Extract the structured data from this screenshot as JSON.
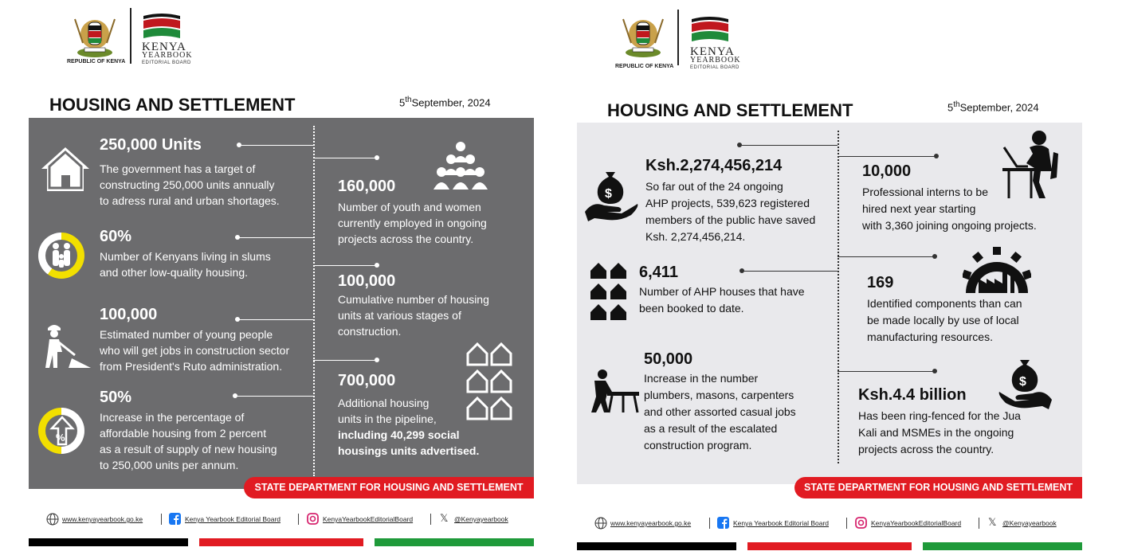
{
  "left": {
    "header": {
      "republic": "REPUBLIC OF KENYA",
      "brand_main": "KENYA",
      "brand_main2": "YEARBOOK",
      "brand_sub": "EDITORIAL BOARD",
      "title": "HOUSING AND SETTLEMENT",
      "date_day": "5",
      "date_suffix": "th",
      "date_rest": "September, 2024"
    },
    "stats_left": [
      {
        "value": "250,000 Units",
        "lines": [
          "The government has a target of",
          "constructing 250,000 units annually",
          "to adress rural and urban shortages."
        ],
        "icon": "house-icon"
      },
      {
        "value": "60%",
        "lines": [
          "Number of Kenyans living in slums",
          "and other low-quality housing."
        ],
        "icon": "family-ring-icon",
        "ring_percent": 60
      },
      {
        "value": "100,000",
        "lines": [
          "Estimated number of young people",
          "who will get jobs in construction sector",
          "from President's Ruto administration."
        ],
        "icon": "worker-shovel-icon"
      },
      {
        "value": "50%",
        "lines": [
          "Increase in the percentage of",
          "affordable housing from 2 percent",
          "as a result of supply of new housing",
          "to 250,000 units per annum."
        ],
        "icon": "percent-arrow-ring-icon",
        "ring_percent": 50
      }
    ],
    "stats_right": [
      {
        "value": "160,000",
        "lines": [
          "Number of youth and women",
          "currently employed in ongoing",
          "projects across the country."
        ],
        "icon": "people-group-icon"
      },
      {
        "value": "100,000",
        "lines": [
          "Cumulative number of housing",
          "units at various stages of",
          "construction."
        ]
      },
      {
        "value": "700,000",
        "lines": [
          "Additional housing",
          "units in the pipeline,",
          "including 40,299 social",
          "housings units advertised."
        ],
        "icon": "houses-grid-icon"
      }
    ],
    "banner": "STATE DEPARTMENT FOR HOUSING AND SETTLEMENT",
    "social": [
      "www.kenyayearbook.go.ke",
      "Kenya Yearbook Editorial Board",
      "KenyaYearbookEditorialBoard",
      "@Kenyayearbook"
    ]
  },
  "right": {
    "header": {
      "republic": "REPUBLIC OF KENYA",
      "brand_main": "KENYA",
      "brand_main2": "YEARBOOK",
      "brand_sub": "EDITORIAL BOARD",
      "title": "HOUSING AND SETTLEMENT",
      "date_day": "5",
      "date_suffix": "th",
      "date_rest": "September, 2024"
    },
    "stats_left": [
      {
        "value": "Ksh.2,274,456,214",
        "lines": [
          "So far out of the 24 ongoing",
          "AHP projects, 539,623 registered",
          "members of the public  have saved",
          "Ksh. 2,274,456,214."
        ],
        "icon": "money-hand-icon"
      },
      {
        "value": "6,411",
        "lines": [
          "Number of AHP houses that have",
          "been booked to date."
        ],
        "icon": "houses-grid-icon"
      },
      {
        "value": "50,000",
        "lines": [
          "Increase in the number",
          "plumbers, masons, carpenters",
          "and other assorted casual jobs",
          "as a result of the escalated",
          "construction program."
        ],
        "icon": "carpenter-icon"
      }
    ],
    "stats_right": [
      {
        "value": "10,000",
        "lines": [
          "Professional interns to be",
          "hired next year starting",
          "with 3,360 joining ongoing projects."
        ],
        "icon": "computer-worker-icon"
      },
      {
        "value": "169",
        "lines": [
          "Identified components than can",
          "be made locally by use of local",
          "manufacturing resources."
        ],
        "icon": "factory-gear-icon"
      },
      {
        "value": "Ksh.4.4 billion",
        "lines": [
          "Has been ring-fenced for the Jua",
          "Kali and MSMEs in the ongoing",
          "projects across the country."
        ],
        "icon": "money-hand-icon"
      }
    ],
    "banner": "STATE DEPARTMENT FOR HOUSING AND SETTLEMENT",
    "social": [
      "www.kenyayearbook.go.ke",
      "Kenya Yearbook Editorial Board",
      "KenyaYearbookEditorialBoard",
      "@Kenyayearbook"
    ]
  },
  "colors": {
    "grey_panel": "#6c6c6e",
    "light_panel": "#e9e9ec",
    "accent_yellow": "#f2df00",
    "banner_red": "#e11b22",
    "flag_black": "#000000",
    "flag_red": "#e11b22",
    "flag_green": "#1f9a3a"
  }
}
